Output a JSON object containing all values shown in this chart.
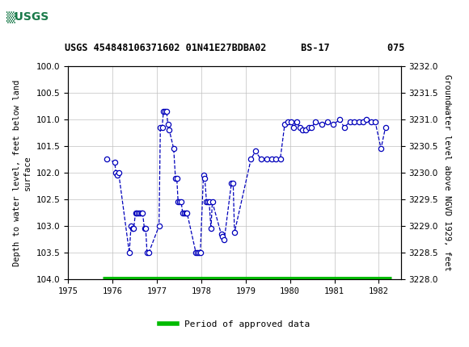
{
  "title": "USGS 454848106371602 01N41E27BDBA02      BS-17          075",
  "header_color": "#1a7a4a",
  "ylabel_left": "Depth to water level, feet below land\nsurface",
  "ylabel_right": "Groundwater level above NGVD 1929, feet",
  "ylim_left": [
    104.0,
    100.0
  ],
  "ylim_right": [
    3228.0,
    3232.0
  ],
  "xlim": [
    1975.0,
    1982.5
  ],
  "yticks_left": [
    100.0,
    100.5,
    101.0,
    101.5,
    102.0,
    102.5,
    103.0,
    103.5,
    104.0
  ],
  "yticks_right": [
    3228.0,
    3228.5,
    3229.0,
    3229.5,
    3230.0,
    3230.5,
    3231.0,
    3231.5,
    3232.0
  ],
  "xticks": [
    1975,
    1976,
    1977,
    1978,
    1979,
    1980,
    1981,
    1982
  ],
  "data_x": [
    1975.87,
    1976.05,
    1976.08,
    1976.11,
    1976.14,
    1976.38,
    1976.42,
    1976.45,
    1976.48,
    1976.52,
    1976.55,
    1976.58,
    1976.62,
    1976.65,
    1976.68,
    1976.72,
    1976.75,
    1976.78,
    1976.82,
    1977.05,
    1977.08,
    1977.12,
    1977.15,
    1977.18,
    1977.22,
    1977.25,
    1977.28,
    1977.38,
    1977.42,
    1977.45,
    1977.48,
    1977.52,
    1977.55,
    1977.58,
    1977.62,
    1977.65,
    1977.68,
    1977.88,
    1977.92,
    1977.95,
    1977.98,
    1978.05,
    1978.08,
    1978.12,
    1978.15,
    1978.18,
    1978.22,
    1978.25,
    1978.45,
    1978.48,
    1978.52,
    1978.68,
    1978.72,
    1978.75,
    1979.12,
    1979.22,
    1979.35,
    1979.48,
    1979.58,
    1979.68,
    1979.78,
    1979.88,
    1979.95,
    1980.02,
    1980.08,
    1980.15,
    1980.22,
    1980.28,
    1980.35,
    1980.42,
    1980.48,
    1980.58,
    1980.72,
    1980.85,
    1980.98,
    1981.12,
    1981.22,
    1981.35,
    1981.45,
    1981.55,
    1981.65,
    1981.72,
    1981.82,
    1981.92,
    1982.05,
    1982.15
  ],
  "data_y": [
    101.75,
    101.8,
    102.0,
    102.05,
    102.0,
    103.5,
    103.0,
    103.05,
    103.05,
    102.75,
    102.75,
    102.75,
    102.75,
    102.75,
    102.75,
    103.05,
    103.05,
    103.5,
    103.5,
    103.0,
    101.15,
    101.15,
    100.85,
    100.85,
    100.85,
    101.1,
    101.2,
    101.55,
    102.1,
    102.1,
    102.55,
    102.55,
    102.55,
    102.75,
    102.75,
    102.75,
    102.75,
    103.5,
    103.5,
    103.5,
    103.5,
    102.05,
    102.1,
    102.55,
    102.55,
    102.55,
    103.05,
    102.55,
    103.15,
    103.2,
    103.25,
    102.2,
    102.2,
    103.12,
    101.75,
    101.6,
    101.75,
    101.75,
    101.75,
    101.75,
    101.75,
    101.1,
    101.05,
    101.05,
    101.15,
    101.05,
    101.15,
    101.2,
    101.2,
    101.15,
    101.15,
    101.05,
    101.1,
    101.05,
    101.1,
    101.0,
    101.15,
    101.05,
    101.05,
    101.05,
    101.05,
    101.0,
    101.05,
    101.05,
    101.55,
    101.15
  ],
  "line_color": "#0000bb",
  "marker_color": "#0000bb",
  "marker_face": "white",
  "approved_bar_color": "#00bb00",
  "background_color": "#ffffff",
  "grid_color": "#c0c0c0"
}
